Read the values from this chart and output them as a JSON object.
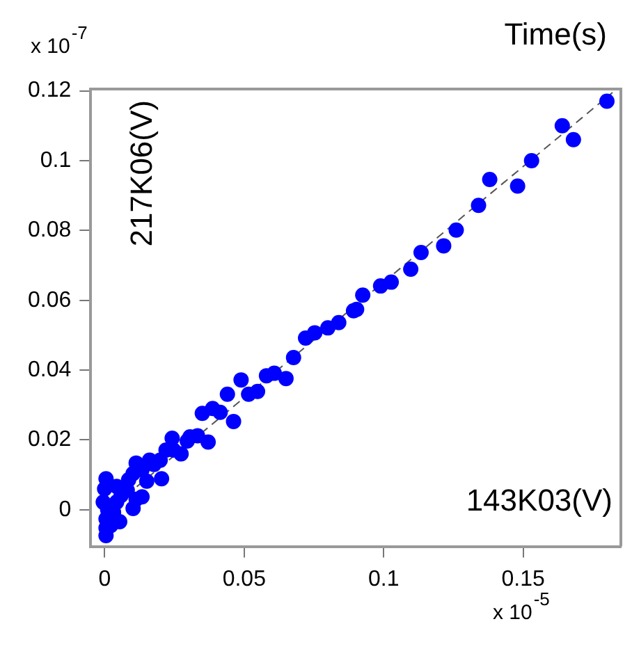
{
  "chart_data": {
    "type": "scatter",
    "title": "Time(s)",
    "xlabel": "143K03(V)",
    "ylabel": "217K06(V)",
    "annotations": [
      "x 10$^{-7}$",
      "x 10$^{-5}$"
    ],
    "xlim": [
      -0.005,
      0.185
    ],
    "ylim": [
      -0.0105,
      0.1205
    ],
    "xticks": [
      0,
      0.05,
      0.1,
      0.15
    ],
    "yticks": [
      0,
      0.02,
      0.04,
      0.06,
      0.08,
      0.1,
      0.12
    ],
    "grid": false,
    "legend": false,
    "marker": "circle",
    "series": [
      {
        "type": "scatter",
        "color": "#0000ff",
        "x": [
          0.18,
          0.164,
          0.168,
          0.153,
          0.138,
          0.148,
          0.134,
          0.126,
          0.1215,
          0.1134,
          0.1097,
          0.1027,
          0.0989,
          0.0925,
          0.0903,
          0.0892,
          0.0839,
          0.08,
          0.0753,
          0.072,
          0.0677,
          0.065,
          0.0608,
          0.058,
          0.0548,
          0.0516,
          0.0489,
          0.0462,
          0.044,
          0.0414,
          0.0387,
          0.035,
          0.0371,
          0.0333,
          0.0306,
          0.0296,
          0.0274,
          0.0242,
          0.0247,
          0.022,
          0.0199,
          0.0204,
          0.0177,
          0.0161,
          0.0134,
          0.0151,
          0.0113,
          0.0102,
          0.0086,
          0.0134,
          0.0113,
          0.0102,
          0.0081,
          0.0059,
          0.0043,
          0.0043,
          0.0032,
          0.0005,
          0.0011,
          0.0005,
          0.0005,
          0.0005,
          0.0022,
          0.0054,
          -0.0005,
          0
        ],
        "values": [
          0.117,
          0.11,
          0.106,
          0.1,
          0.0946,
          0.0927,
          0.0872,
          0.0801,
          0.0756,
          0.0737,
          0.0689,
          0.0652,
          0.0641,
          0.0615,
          0.0574,
          0.057,
          0.0536,
          0.0521,
          0.0507,
          0.0492,
          0.0436,
          0.0376,
          0.0391,
          0.0384,
          0.0339,
          0.0331,
          0.0372,
          0.0253,
          0.0331,
          0.0279,
          0.029,
          0.0276,
          0.0194,
          0.0212,
          0.0209,
          0.0197,
          0.016,
          0.0205,
          0.0171,
          0.0171,
          0.0142,
          0.0089,
          0.013,
          0.0142,
          0.0115,
          0.0082,
          0.0134,
          0.0104,
          0.0086,
          0.0037,
          0.003,
          0.0004,
          0.0056,
          0.0041,
          0.0067,
          0.0022,
          -0.0007,
          0.0089,
          0,
          -0.0026,
          -0.0052,
          -0.0074,
          -0.0045,
          -0.0034,
          0.0022,
          0.006
        ]
      },
      {
        "type": "line",
        "color": "#555555",
        "marker": "none",
        "line_style": "dashed",
        "x": [
          0,
          0.182
        ],
        "values": [
          -0.001,
          0.1195
        ]
      }
    ]
  }
}
